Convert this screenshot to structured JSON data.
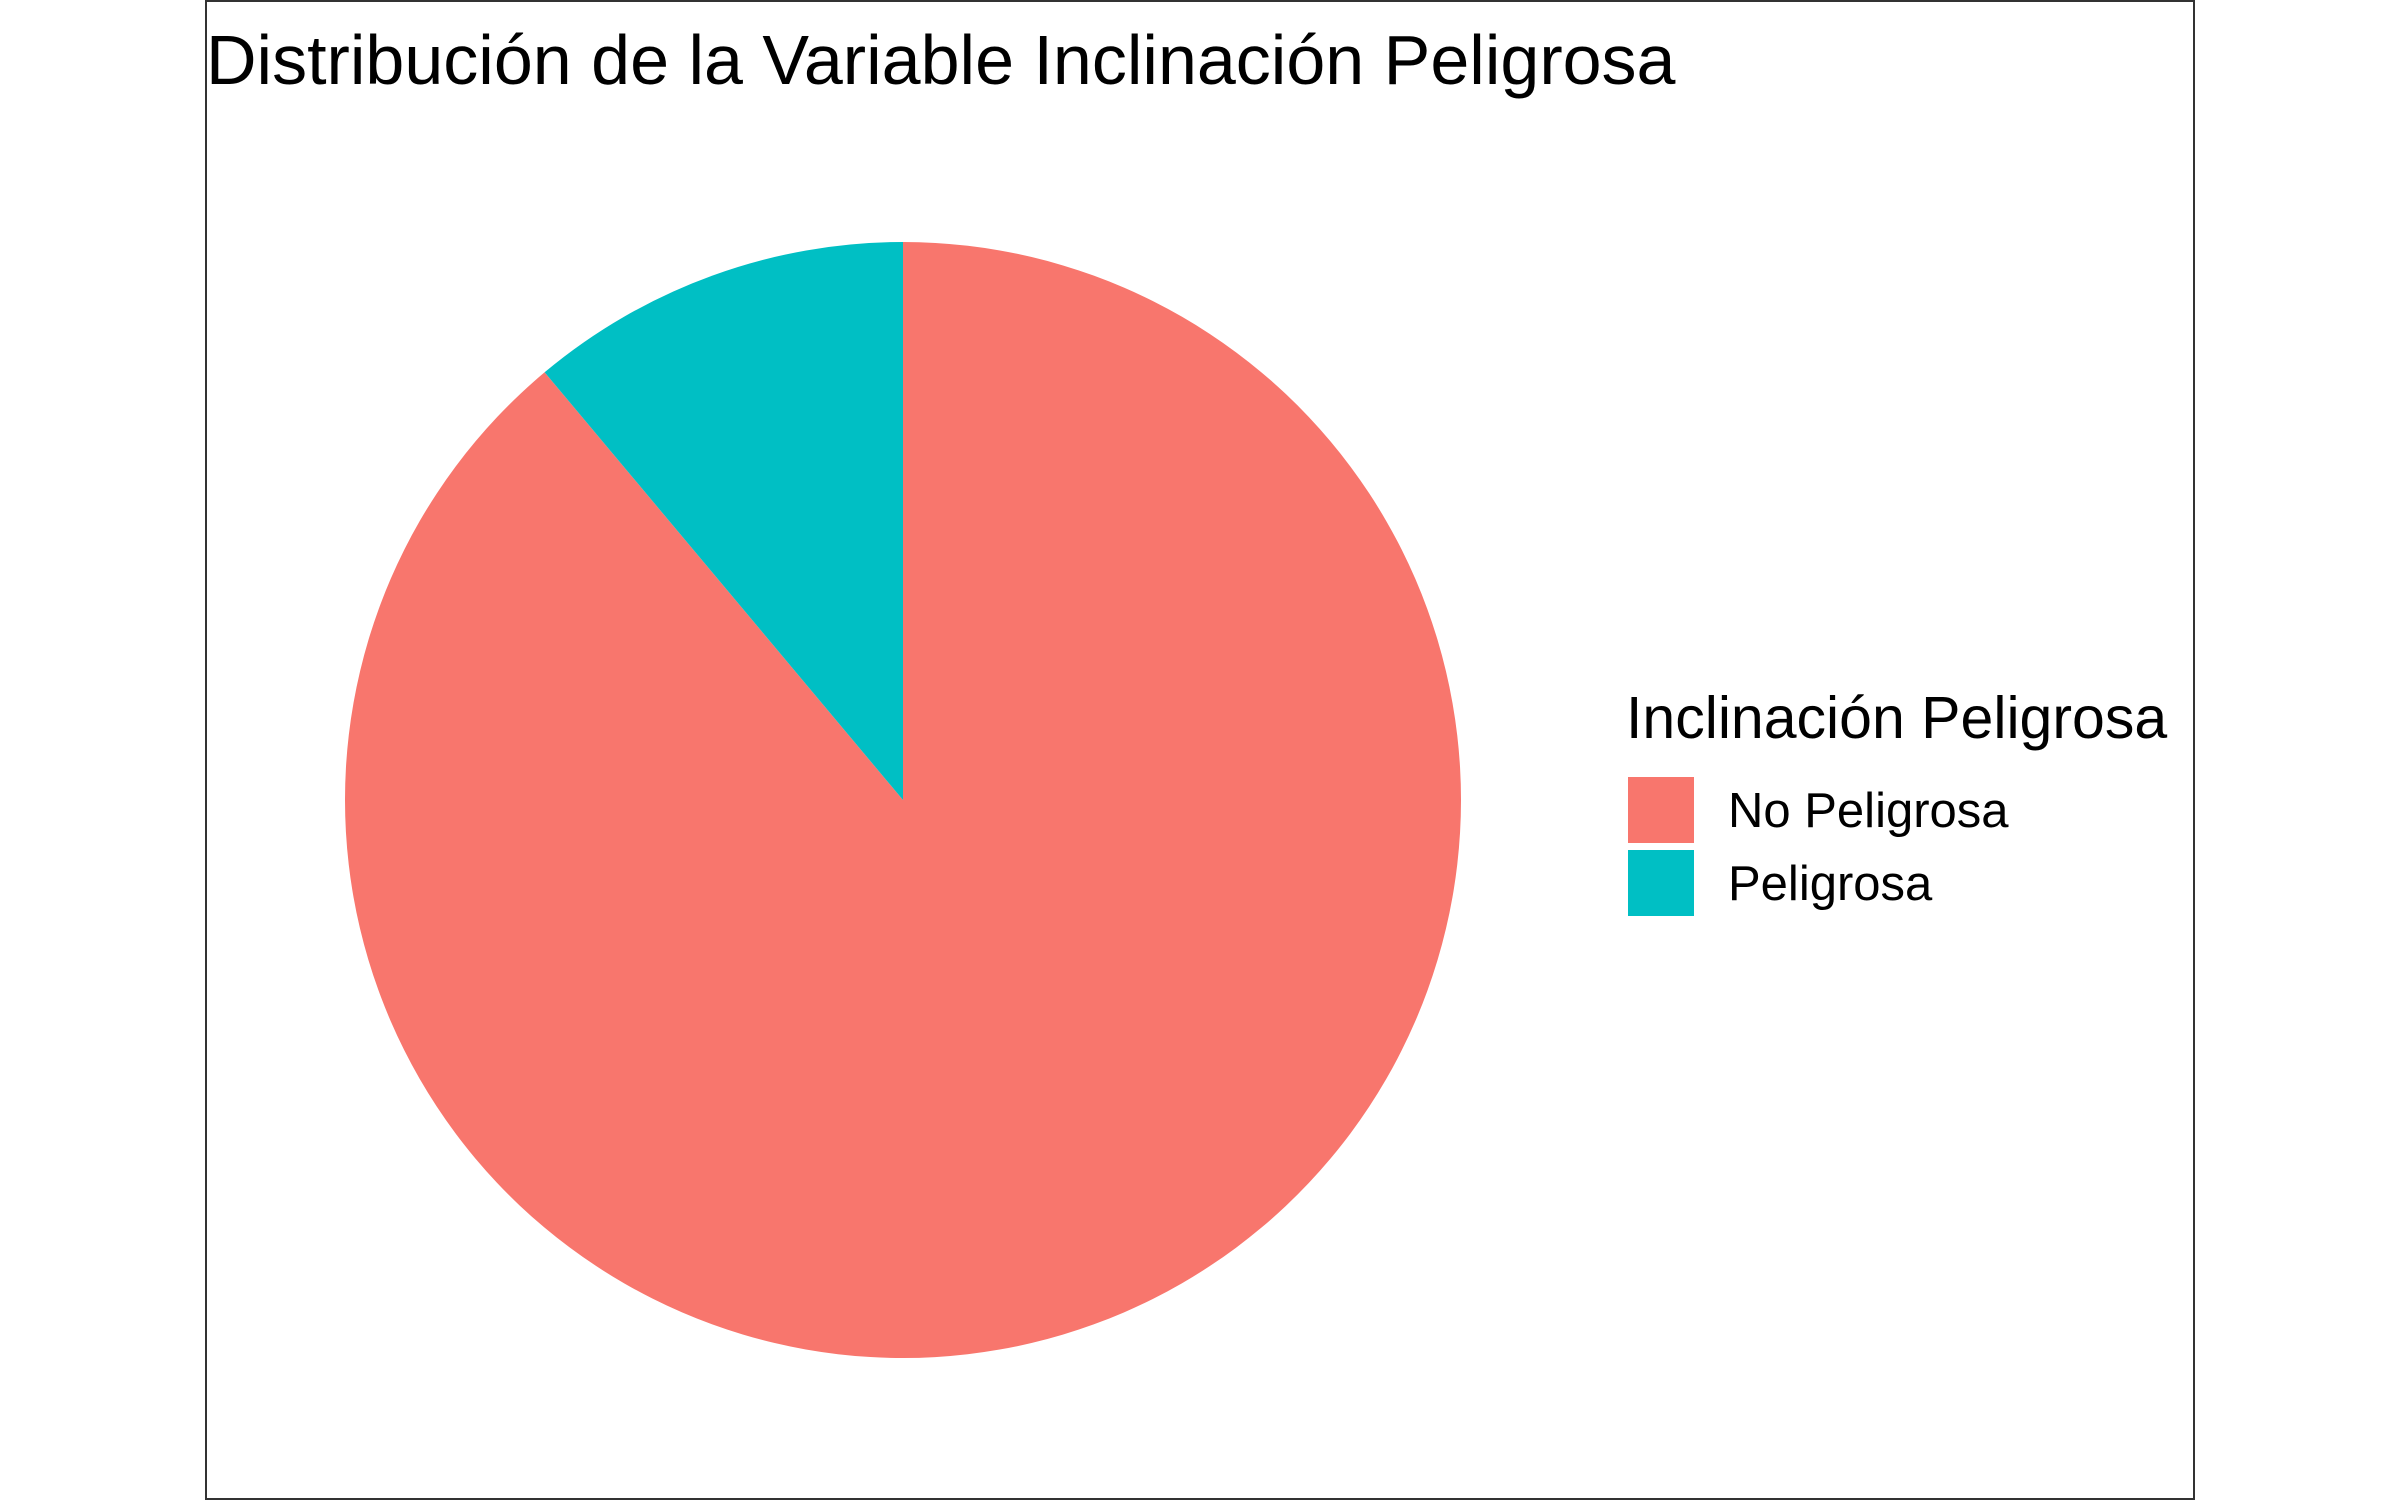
{
  "chart_data": {
    "type": "pie",
    "title": "Distribución de la Variable Inclinación Peligrosa",
    "legend": {
      "title": "Inclinación Peligrosa",
      "position": "right"
    },
    "categories": [
      "No Peligrosa",
      "Peligrosa"
    ],
    "values": [
      0.889,
      0.111
    ],
    "colors": [
      "#F8766D",
      "#00BFC4"
    ],
    "start": "top",
    "direction": "clockwise from Peligrosa (counter-clockwise order)"
  }
}
